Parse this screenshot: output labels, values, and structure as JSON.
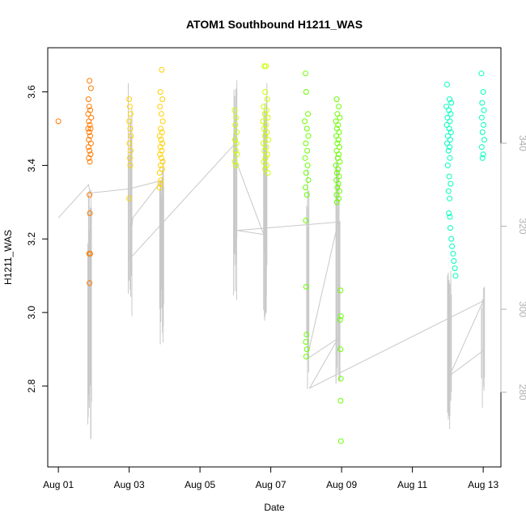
{
  "chart_data": {
    "type": "scatter",
    "title": "ATOM1 Southbound H1211_WAS",
    "xlabel": "Date",
    "ylabel": "H1211_WAS",
    "x_ticks": [
      "Aug 01",
      "Aug 03",
      "Aug 05",
      "Aug 07",
      "Aug 09",
      "Aug 11",
      "Aug 13"
    ],
    "x_tick_days": [
      1,
      3,
      5,
      7,
      9,
      11,
      13
    ],
    "xlim": [
      0.7,
      13.5
    ],
    "ylim": [
      2.58,
      3.72
    ],
    "y_ticks": [
      2.8,
      3.0,
      3.2,
      3.4,
      3.6
    ],
    "y_tick_labels": [
      "2.8",
      "3.0",
      "3.2",
      "3.4",
      "3.6"
    ],
    "y2lim": [
      262,
      363
    ],
    "y2_ticks": [
      280,
      300,
      320,
      340
    ],
    "y2_tick_labels": [
      "280",
      "300",
      "320",
      "340"
    ],
    "colors": {
      "line": "#c8c8c8",
      "right_axis": "#b0b0b0",
      "point_palette": [
        "#ff7a00",
        "#ffd000",
        "#ccff00",
        "#6aff00",
        "#00ff3c",
        "#00ffbe"
      ]
    },
    "series": [
      {
        "name": "H1211_WAS",
        "points": [
          [
            1.0,
            3.52
          ],
          [
            1.88,
            3.63
          ],
          [
            1.92,
            3.61
          ],
          [
            1.85,
            3.58
          ],
          [
            1.87,
            3.56
          ],
          [
            1.9,
            3.55
          ],
          [
            1.84,
            3.54
          ],
          [
            1.93,
            3.53
          ],
          [
            1.86,
            3.52
          ],
          [
            1.89,
            3.51
          ],
          [
            1.91,
            3.5
          ],
          [
            1.84,
            3.5
          ],
          [
            1.87,
            3.49
          ],
          [
            1.9,
            3.48
          ],
          [
            1.86,
            3.47
          ],
          [
            1.92,
            3.46
          ],
          [
            1.85,
            3.45
          ],
          [
            1.88,
            3.44
          ],
          [
            1.91,
            3.43
          ],
          [
            1.86,
            3.42
          ],
          [
            1.89,
            3.41
          ],
          [
            1.88,
            3.32
          ],
          [
            1.89,
            3.27
          ],
          [
            1.87,
            3.16
          ],
          [
            1.9,
            3.16
          ],
          [
            1.88,
            3.08
          ],
          [
            3.0,
            3.58
          ],
          [
            3.02,
            3.56
          ],
          [
            3.04,
            3.54
          ],
          [
            3.0,
            3.52
          ],
          [
            3.03,
            3.5
          ],
          [
            3.05,
            3.48
          ],
          [
            3.01,
            3.46
          ],
          [
            3.04,
            3.44
          ],
          [
            3.02,
            3.42
          ],
          [
            3.03,
            3.4
          ],
          [
            3.0,
            3.31
          ],
          [
            3.92,
            3.66
          ],
          [
            3.88,
            3.6
          ],
          [
            3.94,
            3.58
          ],
          [
            3.87,
            3.56
          ],
          [
            3.91,
            3.54
          ],
          [
            3.95,
            3.52
          ],
          [
            3.89,
            3.5
          ],
          [
            3.93,
            3.49
          ],
          [
            3.86,
            3.48
          ],
          [
            3.9,
            3.47
          ],
          [
            3.94,
            3.46
          ],
          [
            3.88,
            3.45
          ],
          [
            3.92,
            3.44
          ],
          [
            3.87,
            3.43
          ],
          [
            3.91,
            3.42
          ],
          [
            3.95,
            3.41
          ],
          [
            3.89,
            3.4
          ],
          [
            3.93,
            3.39
          ],
          [
            3.86,
            3.38
          ],
          [
            3.9,
            3.36
          ],
          [
            3.88,
            3.35
          ],
          [
            3.86,
            3.34
          ],
          [
            5.98,
            3.55
          ],
          [
            6.02,
            3.53
          ],
          [
            6.0,
            3.51
          ],
          [
            6.04,
            3.49
          ],
          [
            5.99,
            3.47
          ],
          [
            6.03,
            3.46
          ],
          [
            6.01,
            3.44
          ],
          [
            6.05,
            3.43
          ],
          [
            5.98,
            3.41
          ],
          [
            6.02,
            3.4
          ],
          [
            6.82,
            3.67
          ],
          [
            6.86,
            3.67
          ],
          [
            6.84,
            3.6
          ],
          [
            6.9,
            3.58
          ],
          [
            6.8,
            3.56
          ],
          [
            6.88,
            3.55
          ],
          [
            6.83,
            3.54
          ],
          [
            6.92,
            3.53
          ],
          [
            6.78,
            3.52
          ],
          [
            6.86,
            3.51
          ],
          [
            6.81,
            3.5
          ],
          [
            6.89,
            3.49
          ],
          [
            6.84,
            3.48
          ],
          [
            6.93,
            3.47
          ],
          [
            6.79,
            3.46
          ],
          [
            6.87,
            3.45
          ],
          [
            6.82,
            3.44
          ],
          [
            6.9,
            3.43
          ],
          [
            6.85,
            3.42
          ],
          [
            6.8,
            3.41
          ],
          [
            6.88,
            3.4
          ],
          [
            6.84,
            3.39
          ],
          [
            6.92,
            3.38
          ],
          [
            7.98,
            3.65
          ],
          [
            8.0,
            3.6
          ],
          [
            8.05,
            3.54
          ],
          [
            7.96,
            3.52
          ],
          [
            8.02,
            3.5
          ],
          [
            8.06,
            3.48
          ],
          [
            7.99,
            3.46
          ],
          [
            8.03,
            3.44
          ],
          [
            7.97,
            3.42
          ],
          [
            8.04,
            3.4
          ],
          [
            8.0,
            3.38
          ],
          [
            8.06,
            3.36
          ],
          [
            7.98,
            3.34
          ],
          [
            8.02,
            3.32
          ],
          [
            7.99,
            3.25
          ],
          [
            8.0,
            3.07
          ],
          [
            8.01,
            2.94
          ],
          [
            7.99,
            2.92
          ],
          [
            8.02,
            2.9
          ],
          [
            8.0,
            2.88
          ],
          [
            8.86,
            3.58
          ],
          [
            8.92,
            3.56
          ],
          [
            8.88,
            3.54
          ],
          [
            8.95,
            3.53
          ],
          [
            8.84,
            3.52
          ],
          [
            8.9,
            3.51
          ],
          [
            8.87,
            3.5
          ],
          [
            8.93,
            3.49
          ],
          [
            8.85,
            3.48
          ],
          [
            8.91,
            3.47
          ],
          [
            8.88,
            3.46
          ],
          [
            8.94,
            3.45
          ],
          [
            8.86,
            3.44
          ],
          [
            8.92,
            3.43
          ],
          [
            8.89,
            3.42
          ],
          [
            8.95,
            3.41
          ],
          [
            8.84,
            3.4
          ],
          [
            8.9,
            3.39
          ],
          [
            8.87,
            3.38
          ],
          [
            8.93,
            3.37
          ],
          [
            8.85,
            3.36
          ],
          [
            8.91,
            3.35
          ],
          [
            8.88,
            3.34
          ],
          [
            8.94,
            3.33
          ],
          [
            8.86,
            3.32
          ],
          [
            8.92,
            3.31
          ],
          [
            8.87,
            3.3
          ],
          [
            8.97,
            3.06
          ],
          [
            8.98,
            2.99
          ],
          [
            8.96,
            2.98
          ],
          [
            8.97,
            2.9
          ],
          [
            8.98,
            2.82
          ],
          [
            8.97,
            2.76
          ],
          [
            8.98,
            2.65
          ],
          [
            11.98,
            3.62
          ],
          [
            12.05,
            3.58
          ],
          [
            12.1,
            3.57
          ],
          [
            11.96,
            3.56
          ],
          [
            12.03,
            3.55
          ],
          [
            12.08,
            3.54
          ],
          [
            11.99,
            3.53
          ],
          [
            12.06,
            3.52
          ],
          [
            11.97,
            3.51
          ],
          [
            12.04,
            3.5
          ],
          [
            12.09,
            3.49
          ],
          [
            12.0,
            3.48
          ],
          [
            12.07,
            3.47
          ],
          [
            11.98,
            3.46
          ],
          [
            12.05,
            3.45
          ],
          [
            12.02,
            3.44
          ],
          [
            12.06,
            3.42
          ],
          [
            12.0,
            3.4
          ],
          [
            12.04,
            3.37
          ],
          [
            12.08,
            3.35
          ],
          [
            12.02,
            3.33
          ],
          [
            12.05,
            3.31
          ],
          [
            12.03,
            3.27
          ],
          [
            12.06,
            3.26
          ],
          [
            12.07,
            3.23
          ],
          [
            12.1,
            3.2
          ],
          [
            12.12,
            3.18
          ],
          [
            12.15,
            3.16
          ],
          [
            12.17,
            3.14
          ],
          [
            12.2,
            3.12
          ],
          [
            12.22,
            3.1
          ],
          [
            12.95,
            3.65
          ],
          [
            13.0,
            3.6
          ],
          [
            12.97,
            3.57
          ],
          [
            13.02,
            3.55
          ],
          [
            12.96,
            3.53
          ],
          [
            13.01,
            3.51
          ],
          [
            12.98,
            3.49
          ],
          [
            13.03,
            3.47
          ],
          [
            12.96,
            3.45
          ],
          [
            13.0,
            3.43
          ],
          [
            12.98,
            3.42
          ]
        ]
      }
    ]
  }
}
